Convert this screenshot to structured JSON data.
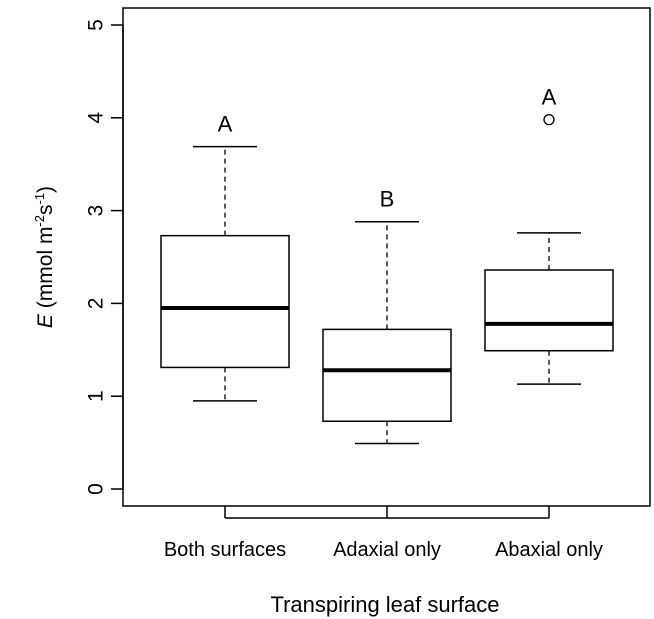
{
  "chart_data": {
    "type": "boxplot",
    "xlabel": "Transpiring leaf surface",
    "ylabel": {
      "symbol": "E",
      "unit_open": " (mmol m",
      "sup1": "-2",
      "unit_mid": "s",
      "sup2": "-1",
      "unit_close": ")"
    },
    "ylim": [
      0,
      5
    ],
    "yticks": [
      0,
      1,
      2,
      3,
      4,
      5
    ],
    "grid": false,
    "categories": [
      "Both surfaces",
      "Adaxial only",
      "Abaxial only"
    ],
    "boxes": [
      {
        "category": "Both surfaces",
        "whisker_low": 0.95,
        "q1": 1.31,
        "median": 1.95,
        "q3": 2.73,
        "whisker_high": 3.69,
        "outliers": [],
        "letter": "A"
      },
      {
        "category": "Adaxial only",
        "whisker_low": 0.49,
        "q1": 0.73,
        "median": 1.28,
        "q3": 1.72,
        "whisker_high": 2.88,
        "outliers": [],
        "letter": "B"
      },
      {
        "category": "Abaxial only",
        "whisker_low": 1.13,
        "q1": 1.49,
        "median": 1.78,
        "q3": 2.36,
        "whisker_high": 2.76,
        "outliers": [
          3.98
        ],
        "letter": "A"
      }
    ]
  }
}
